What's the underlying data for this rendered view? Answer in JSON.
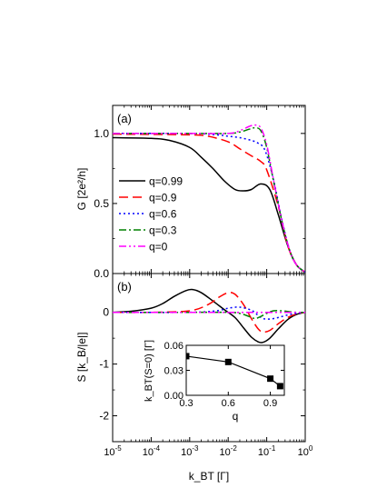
{
  "chart_data": [
    {
      "type": "line",
      "panel_label": "(a)",
      "xscale": "log",
      "xlim": [
        1e-05,
        1
      ],
      "ylim": [
        0,
        1.2
      ],
      "ylabel": "G [2e²/h]",
      "y_ticks": [
        0.0,
        0.5,
        1.0
      ],
      "y_tick_labels": [
        "0.0",
        "0.5",
        "1.0"
      ],
      "legend": "center-left",
      "series": [
        {
          "name": "q=0.99",
          "color": "#000000",
          "dash": "solid",
          "x": [
            1e-05,
            0.0001,
            0.0003,
            0.001,
            0.002,
            0.004,
            0.008,
            0.015,
            0.025,
            0.04,
            0.07,
            0.12,
            0.2,
            0.35,
            0.6,
            1
          ],
          "y": [
            0.97,
            0.965,
            0.95,
            0.9,
            0.83,
            0.75,
            0.66,
            0.6,
            0.59,
            0.6,
            0.64,
            0.6,
            0.42,
            0.2,
            0.06,
            0.01
          ]
        },
        {
          "name": "q=0.9",
          "color": "#ff0000",
          "dash": "10,5",
          "x": [
            1e-05,
            0.001,
            0.003,
            0.01,
            0.02,
            0.04,
            0.07,
            0.1,
            0.2,
            0.35,
            0.6,
            1
          ],
          "y": [
            0.995,
            0.99,
            0.98,
            0.94,
            0.89,
            0.84,
            0.8,
            0.74,
            0.48,
            0.2,
            0.06,
            0.01
          ]
        },
        {
          "name": "q=0.6",
          "color": "#0000ff",
          "dash": "2,3",
          "x": [
            1e-05,
            0.001,
            0.005,
            0.01,
            0.02,
            0.04,
            0.06,
            0.09,
            0.15,
            0.25,
            0.4,
            0.6,
            1
          ],
          "y": [
            1.0,
            1.0,
            0.99,
            0.98,
            0.97,
            0.95,
            0.93,
            0.88,
            0.67,
            0.38,
            0.16,
            0.06,
            0.01
          ]
        },
        {
          "name": "q=0.3",
          "color": "#008000",
          "dash": "8,3,2,3",
          "x": [
            1e-05,
            0.001,
            0.01,
            0.02,
            0.035,
            0.05,
            0.07,
            0.1,
            0.15,
            0.25,
            0.4,
            0.6,
            1
          ],
          "y": [
            1.0,
            1.0,
            1.0,
            1.01,
            1.03,
            1.04,
            1.02,
            0.9,
            0.66,
            0.37,
            0.16,
            0.06,
            0.01
          ]
        },
        {
          "name": "q=0",
          "color": "#ff00ff",
          "dash": "8,3,2,3,2,3",
          "x": [
            1e-05,
            0.001,
            0.01,
            0.02,
            0.035,
            0.05,
            0.07,
            0.1,
            0.15,
            0.25,
            0.4,
            0.6,
            1
          ],
          "y": [
            1.0,
            1.0,
            1.0,
            1.02,
            1.05,
            1.06,
            1.04,
            0.92,
            0.67,
            0.37,
            0.16,
            0.06,
            0.01
          ]
        }
      ]
    },
    {
      "type": "line",
      "panel_label": "(b)",
      "xscale": "log",
      "xlim": [
        1e-05,
        1
      ],
      "ylim": [
        -2.5,
        0.75
      ],
      "ylabel": "S [k_B/|e|]",
      "xlabel": "k_BT [Γ]",
      "y_ticks": [
        0,
        -1,
        -2
      ],
      "y_tick_labels": [
        "0",
        "-1",
        "-2"
      ],
      "x_ticks": [
        1e-05,
        0.0001,
        0.001,
        0.01,
        0.1,
        1
      ],
      "x_tick_labels": [
        {
          "base": "10",
          "exp": "-5"
        },
        {
          "base": "10",
          "exp": "-4"
        },
        {
          "base": "10",
          "exp": "-3"
        },
        {
          "base": "10",
          "exp": "-2"
        },
        {
          "base": "10",
          "exp": "-1"
        },
        {
          "base": "10",
          "exp": "0"
        }
      ],
      "series": [
        {
          "name": "q=0.99",
          "color": "#000000",
          "dash": "solid",
          "x": [
            1e-05,
            3e-05,
            0.0001,
            0.0002,
            0.0004,
            0.0008,
            0.0012,
            0.002,
            0.004,
            0.008,
            0.015,
            0.025,
            0.04,
            0.06,
            0.08,
            0.12,
            0.2,
            0.35,
            0.6,
            1
          ],
          "y": [
            0.0,
            0.02,
            0.08,
            0.17,
            0.31,
            0.42,
            0.44,
            0.38,
            0.22,
            0.05,
            -0.1,
            -0.3,
            -0.48,
            -0.57,
            -0.58,
            -0.5,
            -0.32,
            -0.14,
            -0.04,
            0.0
          ]
        },
        {
          "name": "q=0.9",
          "color": "#ff0000",
          "dash": "10,5",
          "x": [
            1e-05,
            0.0001,
            0.001,
            0.003,
            0.006,
            0.01,
            0.015,
            0.025,
            0.04,
            0.06,
            0.08,
            0.12,
            0.2,
            0.35,
            0.6,
            1
          ],
          "y": [
            0.0,
            0.0,
            0.03,
            0.15,
            0.3,
            0.38,
            0.35,
            0.15,
            -0.12,
            -0.32,
            -0.38,
            -0.35,
            -0.22,
            -0.1,
            -0.03,
            0.0
          ]
        },
        {
          "name": "q=0.6",
          "color": "#0000ff",
          "dash": "2,3",
          "x": [
            1e-05,
            0.001,
            0.005,
            0.01,
            0.02,
            0.04,
            0.06,
            0.08,
            0.12,
            0.2,
            0.35,
            0.6,
            1
          ],
          "y": [
            0.0,
            0.0,
            0.03,
            0.08,
            0.1,
            0.04,
            -0.06,
            -0.12,
            -0.13,
            -0.1,
            -0.05,
            -0.02,
            0.0
          ]
        },
        {
          "name": "q=0.3",
          "color": "#008000",
          "dash": "8,3,2,3",
          "x": [
            1e-05,
            0.001,
            0.01,
            0.02,
            0.035,
            0.05,
            0.07,
            0.1,
            0.15,
            0.25,
            0.4,
            0.6,
            1
          ],
          "y": [
            0.0,
            0.0,
            0.0,
            -0.02,
            -0.08,
            -0.12,
            -0.08,
            -0.02,
            0.03,
            0.03,
            0.01,
            0.0,
            0.0
          ]
        },
        {
          "name": "q=0",
          "color": "#ff00ff",
          "dash": "8,3,2,3,2,3",
          "x": [
            1e-05,
            0.001,
            0.01,
            0.1,
            1
          ],
          "y": [
            0.0,
            0.0,
            0.0,
            0.0,
            0.0
          ]
        }
      ]
    },
    {
      "type": "line",
      "role": "inset",
      "xlim": [
        0.3,
        1.0
      ],
      "ylim": [
        0.0,
        0.06
      ],
      "xlabel": "q",
      "ylabel": "k_BT(S=0) [Γ]",
      "x_ticks": [
        0.3,
        0.6,
        0.9
      ],
      "x_tick_labels": [
        "0.3",
        "0.6",
        "0.9"
      ],
      "y_ticks": [
        0.0,
        0.03,
        0.06
      ],
      "y_tick_labels": [
        "0.00",
        "0.03",
        "0.06"
      ],
      "series": [
        {
          "name": "",
          "color": "#000000",
          "marker": "square",
          "x": [
            0.3,
            0.6,
            0.9,
            0.97
          ],
          "y": [
            0.047,
            0.04,
            0.02,
            0.011
          ]
        }
      ]
    }
  ]
}
